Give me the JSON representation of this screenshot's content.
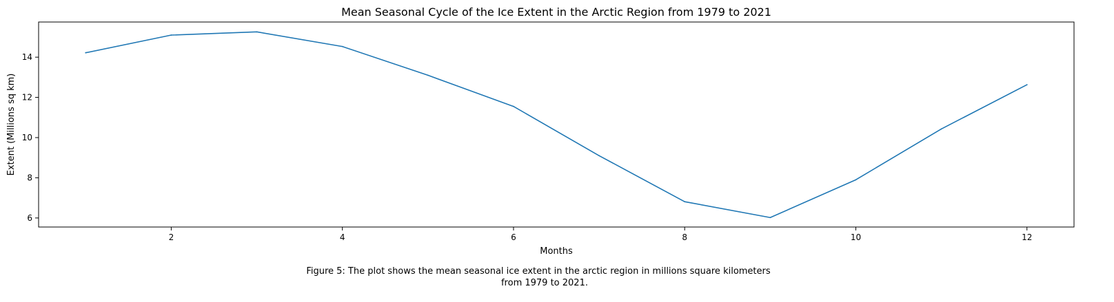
{
  "chart_data": {
    "type": "line",
    "title": "Mean Seasonal Cycle of the Ice Extent in the Arctic Region from 1979 to 2021",
    "xlabel": "Months",
    "ylabel": "Extent (Millions sq km)",
    "xlim": [
      0.45,
      12.55
    ],
    "ylim": [
      5.55,
      15.75
    ],
    "xticks": [
      2,
      4,
      6,
      8,
      10,
      12
    ],
    "yticks": [
      6,
      8,
      10,
      12,
      14
    ],
    "grid": false,
    "series": [
      {
        "color": "#1f77b4",
        "x": [
          1,
          2,
          3,
          4,
          5,
          6,
          7,
          8,
          9,
          10,
          11,
          12
        ],
        "y": [
          14.22,
          15.1,
          15.26,
          14.53,
          13.1,
          11.55,
          9.1,
          6.81,
          6.02,
          7.9,
          10.43,
          12.63
        ]
      }
    ]
  },
  "caption": {
    "lines": [
      "Figure 5: The plot shows the mean seasonal ice extent in the arctic region in millions square kilometers",
      "from 1979 to 2021."
    ]
  }
}
